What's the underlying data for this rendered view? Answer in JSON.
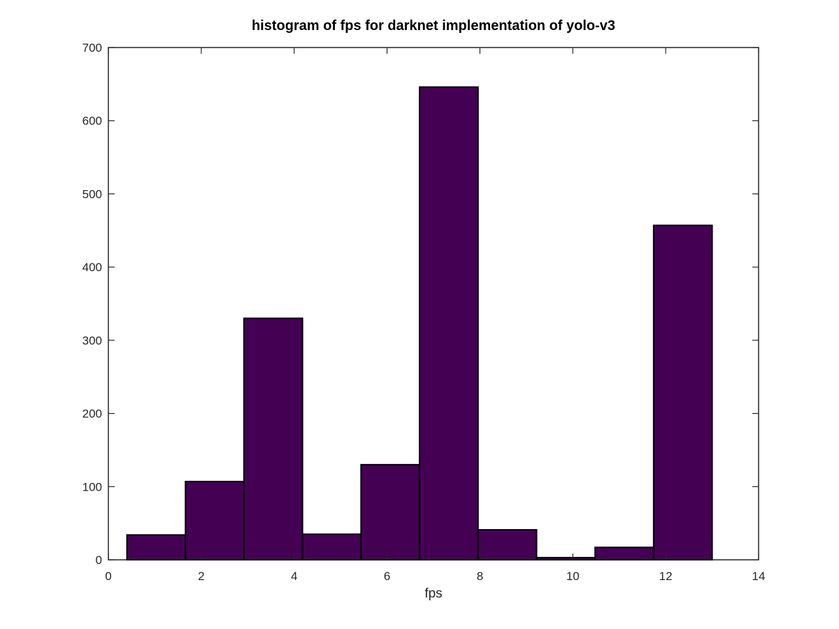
{
  "chart_data": {
    "type": "bar",
    "title": "histogram of fps for darknet implementation of yolo-v3",
    "xlabel": "fps",
    "ylabel": "",
    "xlim": [
      0,
      14
    ],
    "ylim": [
      0,
      700
    ],
    "xticks": [
      0,
      2,
      4,
      6,
      8,
      10,
      12,
      14
    ],
    "yticks": [
      0,
      100,
      200,
      300,
      400,
      500,
      600,
      700
    ],
    "bar_color": "#440154",
    "bar_edge_color": "#000000",
    "bins": [
      {
        "x0": 0.4,
        "x1": 1.66,
        "value": 34
      },
      {
        "x0": 1.66,
        "x1": 2.92,
        "value": 107
      },
      {
        "x0": 2.92,
        "x1": 4.18,
        "value": 330
      },
      {
        "x0": 4.18,
        "x1": 5.44,
        "value": 35
      },
      {
        "x0": 5.44,
        "x1": 6.7,
        "value": 130
      },
      {
        "x0": 6.7,
        "x1": 7.96,
        "value": 646
      },
      {
        "x0": 7.96,
        "x1": 9.22,
        "value": 41
      },
      {
        "x0": 9.22,
        "x1": 10.48,
        "value": 3
      },
      {
        "x0": 10.48,
        "x1": 11.74,
        "value": 17
      },
      {
        "x0": 11.74,
        "x1": 13.0,
        "value": 457
      }
    ],
    "grid": false,
    "legend": "none"
  }
}
